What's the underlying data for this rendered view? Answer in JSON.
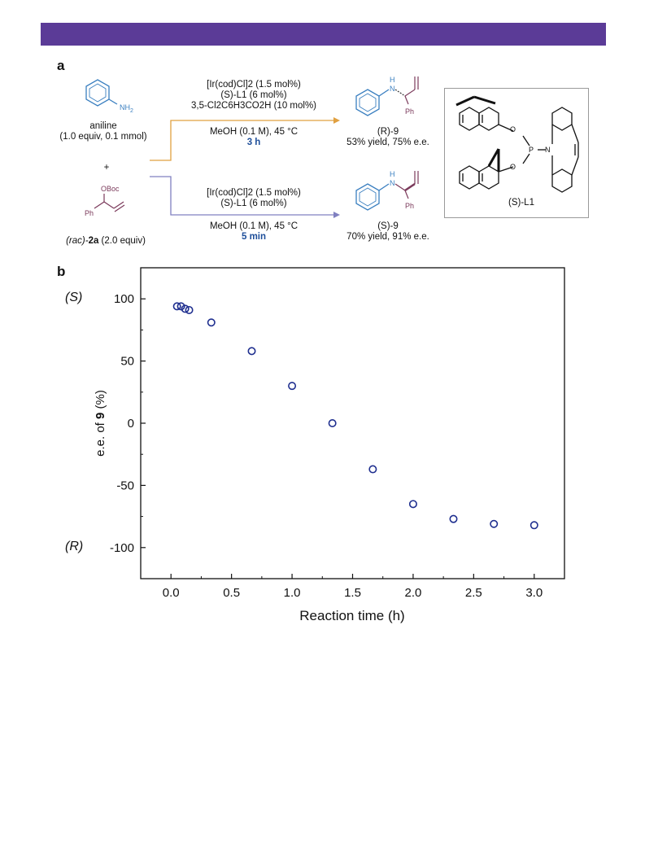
{
  "panel_a": {
    "label": "a",
    "aniline_name": "aniline",
    "aniline_amount": "(1.0 equiv, 0.1 mmol)",
    "nh2": "NH",
    "nh2_sub": "2",
    "plus": "+",
    "oboc": "OBoc",
    "ph": "Ph",
    "substrate_prefix": "(rac)-",
    "substrate_bold": "2a",
    "substrate_rest": " (2.0 equiv)",
    "top_conditions": {
      "line1": "[Ir(cod)Cl]2 (1.5 mol%)",
      "line2": "(S)-L1 (6 mol%)",
      "line3": "3,5-Cl2C6H3CO2H (10 mol%)",
      "line4": "MeOH (0.1 M), 45 °C",
      "time": "3 h"
    },
    "bottom_conditions": {
      "line1": "[Ir(cod)Cl]2 (1.5 mol%)",
      "line2": "(S)-L1 (6 mol%)",
      "line3": "MeOH (0.1 M), 45 °C",
      "time": "5 min"
    },
    "product_top": {
      "name": "(R)-9",
      "result": "53% yield, 75% e.e."
    },
    "product_bottom": {
      "name": "(S)-9",
      "result": "70% yield, 91% e.e."
    },
    "nh_label": "H",
    "n_label": "N",
    "ligand": {
      "name": "(S)-L1",
      "o1": "O",
      "o2": "O",
      "p": "P",
      "n": "N"
    },
    "arrow_top_color": "#e0a040",
    "arrow_bottom_color": "#8080c0"
  },
  "panel_b": {
    "label": "b"
  },
  "chart_data": {
    "type": "scatter",
    "xlabel": "Reaction time (h)",
    "ylabel": "e.e. of 9 (%)",
    "xlim": [
      -0.25,
      3.25
    ],
    "ylim": [
      -125,
      125
    ],
    "xticks": [
      "0.0",
      "0.5",
      "1.0",
      "1.5",
      "2.0",
      "2.5",
      "3.0"
    ],
    "yticks": [
      "100",
      "50",
      "0",
      "-50",
      "-100"
    ],
    "y_annotation_top": "(S)",
    "y_annotation_bottom": "(R)",
    "marker": "open-circle",
    "marker_color": "#1f2f8f",
    "points": [
      {
        "x": 0.05,
        "y": 94
      },
      {
        "x": 0.083,
        "y": 94
      },
      {
        "x": 0.117,
        "y": 92
      },
      {
        "x": 0.15,
        "y": 91
      },
      {
        "x": 0.333,
        "y": 81
      },
      {
        "x": 0.667,
        "y": 58
      },
      {
        "x": 1.0,
        "y": 30
      },
      {
        "x": 1.333,
        "y": 0
      },
      {
        "x": 1.667,
        "y": -37
      },
      {
        "x": 2.0,
        "y": -65
      },
      {
        "x": 2.333,
        "y": -77
      },
      {
        "x": 2.667,
        "y": -81
      },
      {
        "x": 3.0,
        "y": -82
      }
    ]
  }
}
